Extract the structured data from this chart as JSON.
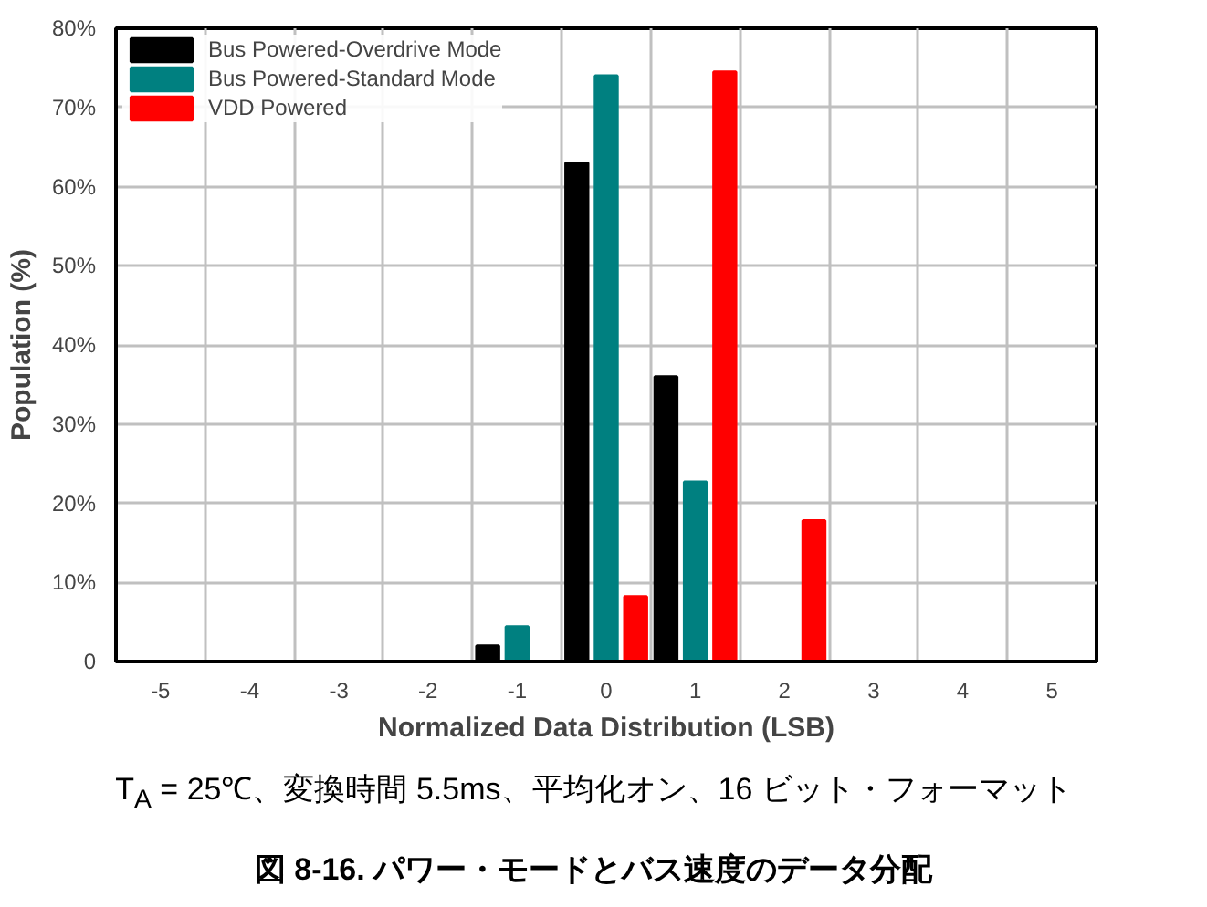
{
  "chart_data": {
    "type": "bar",
    "title": "図 8-16. パワー・モードとバス速度のデータ分配",
    "subtitle": "T$_{A}$ = 25℃、変換時間 5.5ms、平均化オン、16 ビット・フォーマット",
    "xlabel": "Normalized Data Distribution (LSB)",
    "ylabel": "Population (%)",
    "categories": [
      "-5",
      "-4",
      "-3",
      "-2",
      "-1",
      "0",
      "1",
      "2",
      "3",
      "4",
      "5"
    ],
    "series": [
      {
        "name": "Bus Powered-Overdrive Mode",
        "color": "#000000",
        "values": [
          0,
          0,
          0,
          0,
          2,
          63,
          36,
          0,
          0,
          0,
          0
        ]
      },
      {
        "name": "Bus Powered-Standard Mode",
        "color": "#008080",
        "values": [
          0,
          0,
          0,
          0,
          4.4,
          74,
          22.7,
          0,
          0,
          0,
          0
        ]
      },
      {
        "name": "VDD Powered",
        "color": "#ff0000",
        "values": [
          0,
          0,
          0,
          0,
          0,
          8.2,
          74.5,
          17.8,
          0,
          0,
          0
        ]
      }
    ],
    "ylim": [
      0,
      80
    ],
    "yticks": [
      0,
      {
        "value": 10,
        "label": "10%"
      },
      {
        "value": 20,
        "label": "20%"
      },
      {
        "value": 30,
        "label": "30%"
      },
      {
        "value": 40,
        "label": "40%"
      },
      {
        "value": 50,
        "label": "50%"
      },
      {
        "value": 60,
        "label": "60%"
      },
      {
        "value": 70,
        "label": "70%"
      },
      {
        "value": 80,
        "label": "80%"
      }
    ],
    "grid": true,
    "legend": "top left"
  }
}
